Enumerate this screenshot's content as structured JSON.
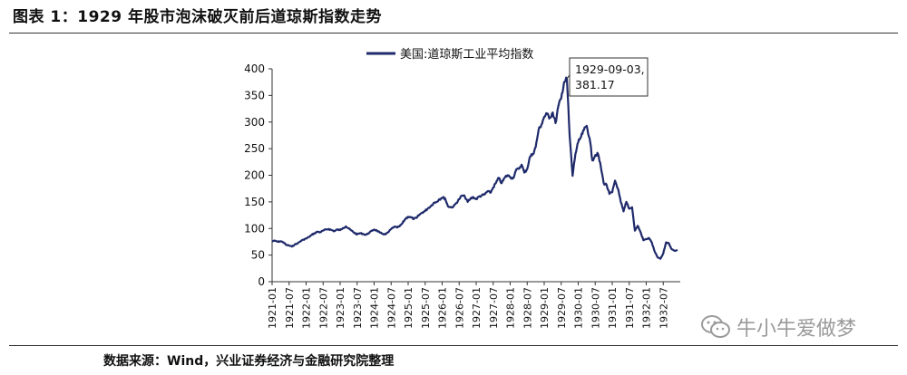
{
  "figure": {
    "title": "图表 1：1929 年股市泡沫破灭前后道琼斯指数走势",
    "source": "数据来源：Wind，兴业证券经济与金融研究院整理",
    "watermark": "牛小牛爱做梦",
    "watermark_icon": "wechat-icon",
    "line_color": "#1f2a6b"
  },
  "chart_data": {
    "type": "line",
    "title": "",
    "xlabel": "",
    "ylabel": "",
    "ylim": [
      0,
      400
    ],
    "yticks": [
      0,
      50,
      100,
      150,
      200,
      250,
      300,
      350,
      400
    ],
    "xlim": [
      "1921-01",
      "1933-01"
    ],
    "xticks": [
      "1921-01",
      "1921-07",
      "1922-01",
      "1922-07",
      "1923-01",
      "1923-07",
      "1924-01",
      "1924-07",
      "1925-01",
      "1925-07",
      "1926-01",
      "1926-07",
      "1927-01",
      "1927-07",
      "1928-01",
      "1928-07",
      "1929-01",
      "1929-07",
      "1930-01",
      "1930-07",
      "1931-01",
      "1931-07",
      "1932-01",
      "1932-07"
    ],
    "grid": false,
    "legend": "top",
    "series": [
      {
        "name": "美国:道琼斯工业平均指数",
        "points": [
          [
            "1921-01",
            76
          ],
          [
            "1921-02",
            77
          ],
          [
            "1921-03",
            75
          ],
          [
            "1921-04",
            76
          ],
          [
            "1921-05",
            74
          ],
          [
            "1921-06",
            69
          ],
          [
            "1921-07",
            68
          ],
          [
            "1921-08",
            66
          ],
          [
            "1921-09",
            70
          ],
          [
            "1921-10",
            72
          ],
          [
            "1921-11",
            76
          ],
          [
            "1921-12",
            79
          ],
          [
            "1922-01",
            81
          ],
          [
            "1922-02",
            84
          ],
          [
            "1922-03",
            88
          ],
          [
            "1922-04",
            91
          ],
          [
            "1922-05",
            94
          ],
          [
            "1922-06",
            93
          ],
          [
            "1922-07",
            96
          ],
          [
            "1922-08",
            98
          ],
          [
            "1922-09",
            99
          ],
          [
            "1922-10",
            97
          ],
          [
            "1922-11",
            95
          ],
          [
            "1922-12",
            98
          ],
          [
            "1923-01",
            97
          ],
          [
            "1923-02",
            101
          ],
          [
            "1923-03",
            104
          ],
          [
            "1923-04",
            100
          ],
          [
            "1923-05",
            96
          ],
          [
            "1923-06",
            92
          ],
          [
            "1923-07",
            89
          ],
          [
            "1923-08",
            91
          ],
          [
            "1923-09",
            90
          ],
          [
            "1923-10",
            88
          ],
          [
            "1923-11",
            91
          ],
          [
            "1923-12",
            95
          ],
          [
            "1924-01",
            98
          ],
          [
            "1924-02",
            96
          ],
          [
            "1924-03",
            92
          ],
          [
            "1924-04",
            90
          ],
          [
            "1924-05",
            89
          ],
          [
            "1924-06",
            93
          ],
          [
            "1924-07",
            99
          ],
          [
            "1924-08",
            103
          ],
          [
            "1924-09",
            102
          ],
          [
            "1924-10",
            104
          ],
          [
            "1924-11",
            110
          ],
          [
            "1924-12",
            118
          ],
          [
            "1925-01",
            122
          ],
          [
            "1925-02",
            121
          ],
          [
            "1925-03",
            118
          ],
          [
            "1925-04",
            120
          ],
          [
            "1925-05",
            126
          ],
          [
            "1925-06",
            130
          ],
          [
            "1925-07",
            133
          ],
          [
            "1925-08",
            138
          ],
          [
            "1925-09",
            142
          ],
          [
            "1925-10",
            148
          ],
          [
            "1925-11",
            150
          ],
          [
            "1925-12",
            155
          ],
          [
            "1926-01",
            158
          ],
          [
            "1926-02",
            157
          ],
          [
            "1926-03",
            142
          ],
          [
            "1926-04",
            140
          ],
          [
            "1926-05",
            141
          ],
          [
            "1926-06",
            148
          ],
          [
            "1926-07",
            155
          ],
          [
            "1926-08",
            162
          ],
          [
            "1926-09",
            160
          ],
          [
            "1926-10",
            150
          ],
          [
            "1926-11",
            156
          ],
          [
            "1926-12",
            159
          ],
          [
            "1927-01",
            155
          ],
          [
            "1927-02",
            160
          ],
          [
            "1927-03",
            162
          ],
          [
            "1927-04",
            164
          ],
          [
            "1927-05",
            170
          ],
          [
            "1927-06",
            167
          ],
          [
            "1927-07",
            177
          ],
          [
            "1927-08",
            186
          ],
          [
            "1927-09",
            195
          ],
          [
            "1927-10",
            185
          ],
          [
            "1927-11",
            195
          ],
          [
            "1927-12",
            200
          ],
          [
            "1928-01",
            197
          ],
          [
            "1928-02",
            194
          ],
          [
            "1928-03",
            209
          ],
          [
            "1928-04",
            212
          ],
          [
            "1928-05",
            220
          ],
          [
            "1928-06",
            205
          ],
          [
            "1928-07",
            212
          ],
          [
            "1928-08",
            235
          ],
          [
            "1928-09",
            240
          ],
          [
            "1928-10",
            253
          ],
          [
            "1928-11",
            285
          ],
          [
            "1928-12",
            295
          ],
          [
            "1929-01",
            310
          ],
          [
            "1929-02",
            315
          ],
          [
            "1929-03",
            308
          ],
          [
            "1929-04",
            318
          ],
          [
            "1929-05",
            298
          ],
          [
            "1929-06",
            330
          ],
          [
            "1929-07",
            345
          ],
          [
            "1929-08",
            375
          ],
          [
            "1929-09",
            381.17
          ],
          [
            "1929-10",
            273
          ],
          [
            "1929-11",
            199
          ],
          [
            "1929-12",
            240
          ],
          [
            "1930-01",
            262
          ],
          [
            "1930-02",
            272
          ],
          [
            "1930-03",
            285
          ],
          [
            "1930-04",
            293
          ],
          [
            "1930-05",
            270
          ],
          [
            "1930-06",
            228
          ],
          [
            "1930-07",
            238
          ],
          [
            "1930-08",
            240
          ],
          [
            "1930-09",
            215
          ],
          [
            "1930-10",
            185
          ],
          [
            "1930-11",
            182
          ],
          [
            "1930-12",
            165
          ],
          [
            "1931-01",
            168
          ],
          [
            "1931-02",
            190
          ],
          [
            "1931-03",
            175
          ],
          [
            "1931-04",
            150
          ],
          [
            "1931-05",
            132
          ],
          [
            "1931-06",
            150
          ],
          [
            "1931-07",
            137
          ],
          [
            "1931-08",
            140
          ],
          [
            "1931-09",
            96
          ],
          [
            "1931-10",
            105
          ],
          [
            "1931-11",
            93
          ],
          [
            "1931-12",
            78
          ],
          [
            "1932-01",
            80
          ],
          [
            "1932-02",
            82
          ],
          [
            "1932-03",
            73
          ],
          [
            "1932-04",
            56
          ],
          [
            "1932-05",
            46
          ],
          [
            "1932-06",
            43
          ],
          [
            "1932-07",
            53
          ],
          [
            "1932-08",
            74
          ],
          [
            "1932-09",
            72
          ],
          [
            "1932-10",
            61
          ],
          [
            "1932-11",
            58
          ],
          [
            "1932-12",
            60
          ]
        ]
      }
    ],
    "annotations": [
      {
        "date": "1929-09",
        "value": 381.17,
        "text_lines": [
          "1929-09-03,",
          "381.17"
        ]
      }
    ]
  }
}
